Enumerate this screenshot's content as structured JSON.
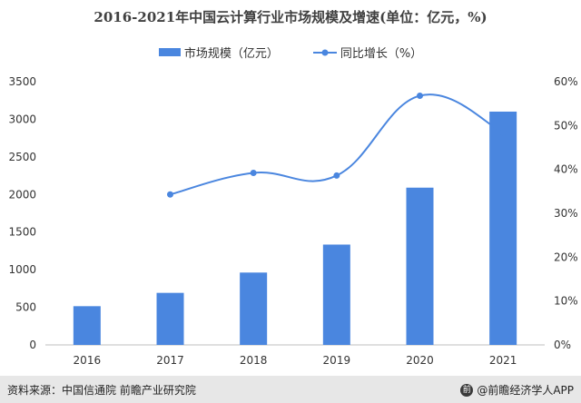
{
  "chart_data": {
    "type": "bar",
    "title": "2016-2021年中国云计算行业市场规模及增速(单位：亿元，%)",
    "categories": [
      "2016",
      "2017",
      "2018",
      "2019",
      "2020",
      "2021"
    ],
    "series": [
      {
        "name": "市场规模（亿元）",
        "type": "bar",
        "axis": "left",
        "values": [
          515,
          692,
          962,
          1334,
          2091,
          3102
        ]
      },
      {
        "name": "同比增长（%）",
        "type": "line",
        "axis": "right",
        "values": [
          null,
          34.3,
          39.2,
          38.6,
          56.8,
          48.4
        ]
      }
    ],
    "y_left": {
      "ylim": [
        0,
        3500
      ],
      "ticks": [
        "0",
        "500",
        "1000",
        "1500",
        "2000",
        "2500",
        "3000",
        "3500"
      ]
    },
    "y_right": {
      "ylim": [
        0,
        60
      ],
      "ticks": [
        "0%",
        "10%",
        "20%",
        "30%",
        "40%",
        "50%",
        "60%"
      ]
    },
    "grid": false,
    "legend": "top-center",
    "colors": {
      "bar": "#4a86df",
      "line": "#4a86df"
    }
  },
  "footer": {
    "source": "资料来源：中国信通院 前瞻产业研究院",
    "brand": "@前瞻经济学人APP"
  }
}
